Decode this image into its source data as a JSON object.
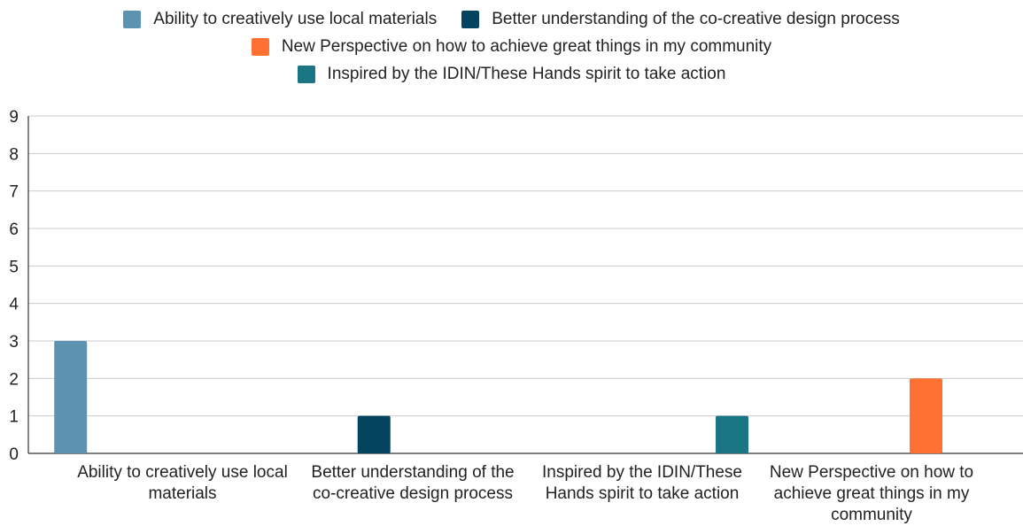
{
  "chart_data": {
    "type": "bar",
    "categories": [
      "Ability to creatively use local materials",
      "Better understanding of the co-creative design process",
      "Inspired by the IDIN/These Hands spirit to take action",
      "New Perspective on how to achieve great things in my community"
    ],
    "series": [
      {
        "name": "Ability to creatively use local materials",
        "color": "#5b93b1",
        "values": [
          3,
          null,
          null,
          null
        ]
      },
      {
        "name": "Better understanding of the co-creative design process",
        "color": "#05445e",
        "values": [
          null,
          1,
          null,
          null
        ]
      },
      {
        "name": "New Perspective on how to achieve great things in my community",
        "color": "#ff7133",
        "values": [
          null,
          null,
          null,
          2
        ]
      },
      {
        "name": "Inspired by the IDIN/These Hands spirit to take action",
        "color": "#1a7585",
        "values": [
          null,
          null,
          1,
          null
        ]
      }
    ],
    "ylim": [
      0,
      9
    ],
    "yticks": [
      "0",
      "1",
      "2",
      "3",
      "4",
      "5",
      "6",
      "7",
      "8",
      "9"
    ],
    "xticks": [
      "Ability to creatively use local materials",
      "Better understanding of the co-creative design process",
      "Inspired by the IDIN/These Hands spirit to take action",
      "New Perspective on how to achieve great things in my community"
    ],
    "grid": true,
    "legend_position": "top"
  },
  "legend": {
    "items": [
      {
        "label": "Ability to creatively use local materials",
        "color": "#5b93b1"
      },
      {
        "label": "Better understanding of the co-creative design process",
        "color": "#05445e"
      },
      {
        "label": "New Perspective on how to achieve great things in my community",
        "color": "#ff7133"
      },
      {
        "label": "Inspired by the IDIN/These Hands spirit to take action",
        "color": "#1a7585"
      }
    ]
  }
}
